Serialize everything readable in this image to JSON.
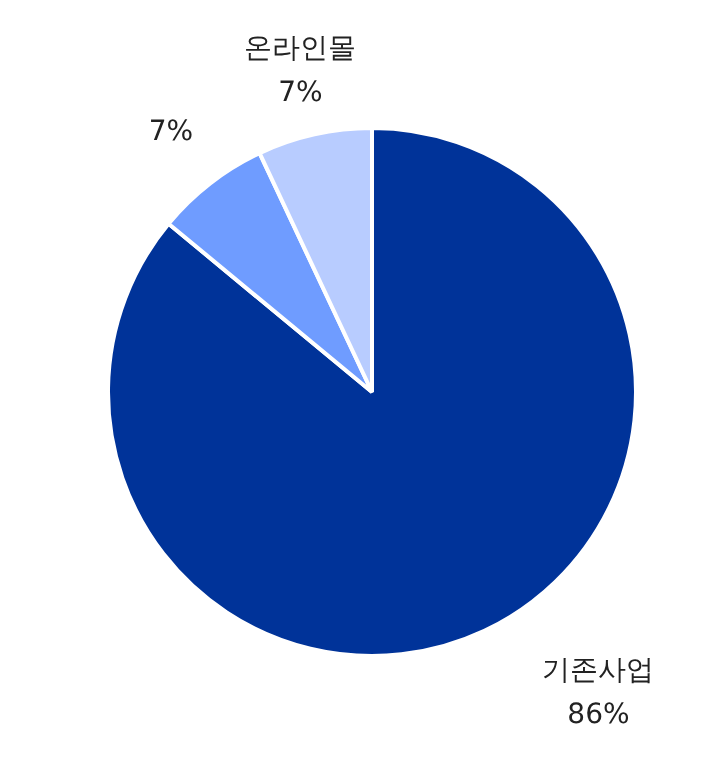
{
  "chart_data": {
    "type": "pie",
    "categories": [
      "기존사업",
      null,
      "온라인몰"
    ],
    "values": [
      86,
      7,
      7
    ],
    "colors": [
      "#003399",
      "#6f9cff",
      "#b8ccff"
    ],
    "value_labels": [
      "86%",
      "7%",
      "7%"
    ],
    "legend": false
  }
}
